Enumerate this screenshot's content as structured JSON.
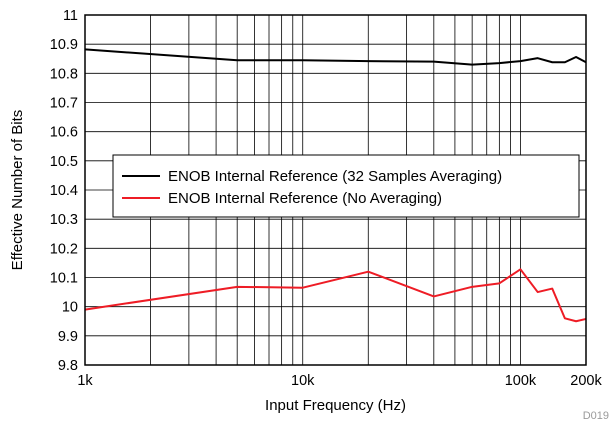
{
  "chart_data": {
    "type": "line",
    "title": "",
    "xlabel": "Input Frequency (Hz)",
    "ylabel": "Effective Number of Bits",
    "x_scale": "log",
    "xlim": [
      1000,
      200000
    ],
    "ylim": [
      9.8,
      11
    ],
    "x_ticks": [
      {
        "value": 1000,
        "label": "1k"
      },
      {
        "value": 10000,
        "label": "10k"
      },
      {
        "value": 100000,
        "label": "100k"
      },
      {
        "value": 200000,
        "label": "200k"
      }
    ],
    "y_ticks": [
      {
        "value": 9.8,
        "label": "9.8"
      },
      {
        "value": 9.9,
        "label": "9.9"
      },
      {
        "value": 10.0,
        "label": "10"
      },
      {
        "value": 10.1,
        "label": "10.1"
      },
      {
        "value": 10.2,
        "label": "10.2"
      },
      {
        "value": 10.3,
        "label": "10.3"
      },
      {
        "value": 10.4,
        "label": "10.4"
      },
      {
        "value": 10.5,
        "label": "10.5"
      },
      {
        "value": 10.6,
        "label": "10.6"
      },
      {
        "value": 10.7,
        "label": "10.7"
      },
      {
        "value": 10.8,
        "label": "10.8"
      },
      {
        "value": 10.9,
        "label": "10.9"
      },
      {
        "value": 11.0,
        "label": "11"
      }
    ],
    "grid": true,
    "legend_position": "center",
    "series": [
      {
        "name": "ENOB Internal Reference (32 Samples Averaging)",
        "color": "#000000",
        "points": [
          [
            1000,
            10.882
          ],
          [
            5000,
            10.845
          ],
          [
            10000,
            10.845
          ],
          [
            20000,
            10.842
          ],
          [
            40000,
            10.84
          ],
          [
            60000,
            10.83
          ],
          [
            80000,
            10.835
          ],
          [
            100000,
            10.842
          ],
          [
            120000,
            10.852
          ],
          [
            140000,
            10.838
          ],
          [
            160000,
            10.838
          ],
          [
            180000,
            10.856
          ],
          [
            200000,
            10.838
          ]
        ]
      },
      {
        "name": "ENOB Internal Reference (No Averaging)",
        "color": "#ee1c25",
        "points": [
          [
            1000,
            9.99
          ],
          [
            5000,
            10.068
          ],
          [
            10000,
            10.065
          ],
          [
            20000,
            10.12
          ],
          [
            40000,
            10.035
          ],
          [
            60000,
            10.068
          ],
          [
            80000,
            10.08
          ],
          [
            100000,
            10.128
          ],
          [
            120000,
            10.05
          ],
          [
            140000,
            10.062
          ],
          [
            160000,
            9.96
          ],
          [
            180000,
            9.95
          ],
          [
            200000,
            9.958
          ]
        ]
      }
    ],
    "figure_id": "D019"
  }
}
